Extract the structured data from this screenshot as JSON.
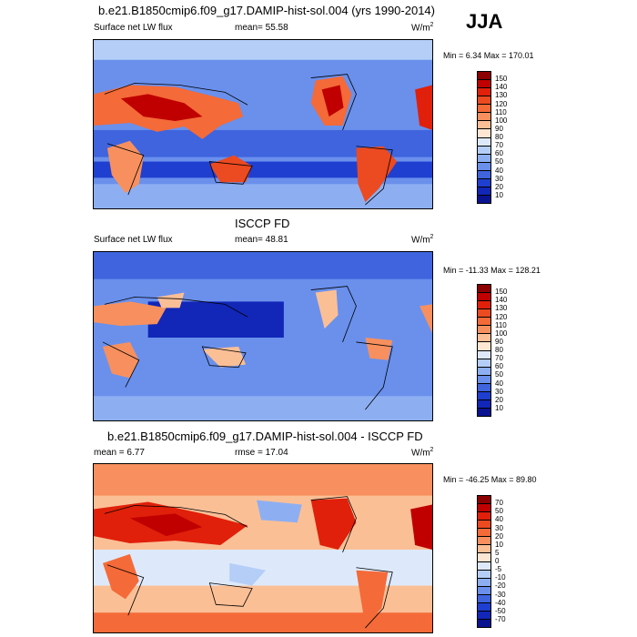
{
  "season": "JJA",
  "panels": [
    {
      "title": "b.e21.B1850cmip6.f09_g17.DAMIP-hist-sol.004 (yrs 1990-2014)",
      "left_label": "Surface net LW flux",
      "center_label": "mean=  55.58",
      "units": "W/m",
      "units_sup": "2",
      "minmax": "Min =   6.34 Max = 170.01",
      "colorbar": {
        "labels": [
          "150",
          "140",
          "130",
          "120",
          "110",
          "100",
          "90",
          "80",
          "70",
          "60",
          "50",
          "40",
          "30",
          "20",
          "10"
        ],
        "colors": [
          "#8b0000",
          "#c00000",
          "#e0200a",
          "#ec4a20",
          "#f46a38",
          "#f7905e",
          "#fbbf96",
          "#fde6d2",
          "#dde9fb",
          "#b5cef7",
          "#8daff2",
          "#6a90ec",
          "#3f64de",
          "#1f3fd0",
          "#1226b8",
          "#0a138f"
        ]
      }
    },
    {
      "title": "ISCCP FD",
      "left_label": "Surface net LW flux",
      "center_label": "mean=  48.81",
      "units": "W/m",
      "units_sup": "2",
      "minmax": "Min = -11.33 Max = 128.21",
      "colorbar": {
        "labels": [
          "150",
          "140",
          "130",
          "120",
          "110",
          "100",
          "90",
          "80",
          "70",
          "60",
          "50",
          "40",
          "30",
          "20",
          "10"
        ],
        "colors": [
          "#8b0000",
          "#c00000",
          "#e0200a",
          "#ec4a20",
          "#f46a38",
          "#f7905e",
          "#fbbf96",
          "#fde6d2",
          "#dde9fb",
          "#b5cef7",
          "#8daff2",
          "#6a90ec",
          "#3f64de",
          "#1f3fd0",
          "#1226b8",
          "#0a138f"
        ]
      }
    },
    {
      "title": "b.e21.B1850cmip6.f09_g17.DAMIP-hist-sol.004 - ISCCP FD",
      "left_label": "mean =   6.77",
      "center_label": "rmse =  17.04",
      "units": "W/m",
      "units_sup": "2",
      "minmax": "Min = -46.25 Max =  89.80",
      "colorbar": {
        "labels": [
          "70",
          "50",
          "40",
          "30",
          "20",
          "10",
          "5",
          "0",
          "-5",
          "-10",
          "-20",
          "-30",
          "-40",
          "-50",
          "-70"
        ],
        "colors": [
          "#8b0000",
          "#c00000",
          "#e0200a",
          "#ec4a20",
          "#f46a38",
          "#f7905e",
          "#fbbf96",
          "#fde6d2",
          "#dde9fb",
          "#b5cef7",
          "#8daff2",
          "#6a90ec",
          "#3f64de",
          "#1f3fd0",
          "#1226b8",
          "#0a138f"
        ]
      }
    }
  ]
}
